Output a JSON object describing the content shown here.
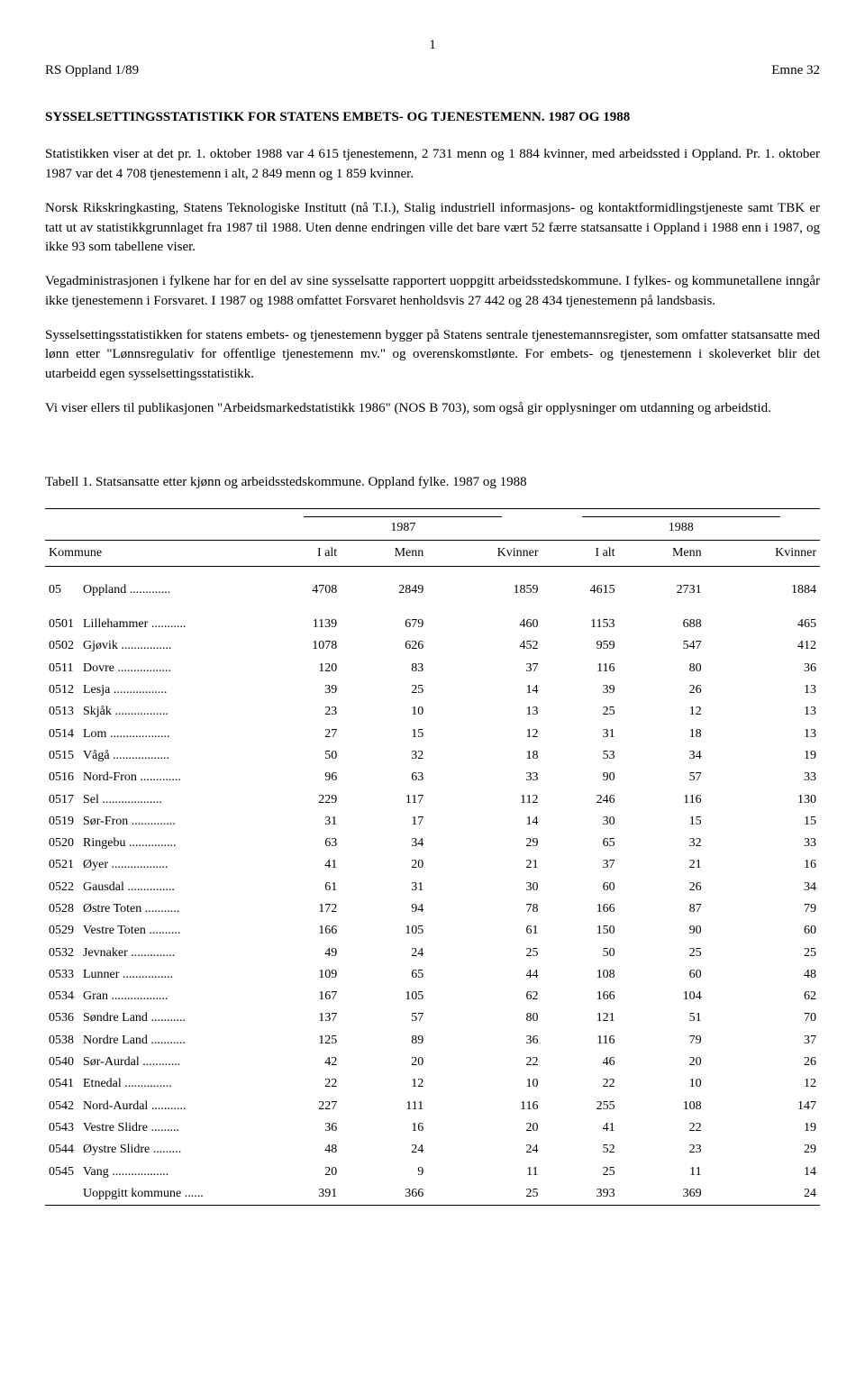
{
  "header": {
    "doc_ref": "RS Oppland 1/89",
    "page_number": "1",
    "topic": "Emne 32"
  },
  "title": "SYSSELSETTINGSSTATISTIKK FOR STATENS EMBETS- OG TJENESTEMENN. 1987 OG 1988",
  "paragraphs": [
    "Statistikken viser at det pr. 1. oktober 1988 var 4 615 tjenestemenn, 2 731 menn og 1 884 kvinner, med arbeidssted i Oppland. Pr. 1. oktober 1987 var det 4 708 tjenestemenn i alt, 2 849 menn og 1 859 kvinner.",
    "Norsk Rikskringkasting, Statens Teknologiske Institutt (nå T.I.), Stalig industriell informasjons- og kontaktformidlingstjeneste samt TBK er tatt ut av statistikkgrunnlaget fra 1987 til 1988. Uten denne endringen ville det bare vært 52 færre statsansatte i Oppland i 1988 enn i 1987, og ikke 93 som tabellene viser.",
    "Vegadministrasjonen i fylkene har for en del av sine sysselsatte rapportert uoppgitt arbeidsstedskommune. I fylkes- og kommunetallene inngår ikke tjenestemenn i Forsvaret. I 1987 og 1988 omfattet Forsvaret henholdsvis 27 442 og 28 434 tjenestemenn på landsbasis.",
    "Sysselsettingsstatistikken for statens embets- og tjenestemenn bygger på Statens sentrale tjenestemannsregister, som omfatter statsansatte med lønn etter \"Lønnsregulativ for offentlige tjenestemenn mv.\" og overenskomstlønte. For embets- og tjenestemenn i skoleverket blir det utarbeidd egen sysselsettingsstatistikk.",
    "Vi viser ellers til publikasjonen \"Arbeidsmarkedstatistikk 1986\" (NOS B 703), som også gir opplysninger om utdanning og arbeidstid."
  ],
  "table": {
    "caption": "Tabell 1. Statsansatte etter kjønn og arbeidsstedskommune. Oppland fylke. 1987 og 1988",
    "year_a": "1987",
    "year_b": "1988",
    "columns": {
      "kommune": "Kommune",
      "ialt": "I alt",
      "menn": "Menn",
      "kvinner": "Kvinner"
    },
    "total_row": {
      "code": "05",
      "name": "Oppland",
      "a_total": "4708",
      "a_menn": "2849",
      "a_kvinner": "1859",
      "b_total": "4615",
      "b_menn": "2731",
      "b_kvinner": "1884"
    },
    "rows": [
      {
        "code": "0501",
        "name": "Lillehammer",
        "a_total": "1139",
        "a_menn": "679",
        "a_kvinner": "460",
        "b_total": "1153",
        "b_menn": "688",
        "b_kvinner": "465"
      },
      {
        "code": "0502",
        "name": "Gjøvik",
        "a_total": "1078",
        "a_menn": "626",
        "a_kvinner": "452",
        "b_total": "959",
        "b_menn": "547",
        "b_kvinner": "412"
      },
      {
        "code": "0511",
        "name": "Dovre",
        "a_total": "120",
        "a_menn": "83",
        "a_kvinner": "37",
        "b_total": "116",
        "b_menn": "80",
        "b_kvinner": "36"
      },
      {
        "code": "0512",
        "name": "Lesja",
        "a_total": "39",
        "a_menn": "25",
        "a_kvinner": "14",
        "b_total": "39",
        "b_menn": "26",
        "b_kvinner": "13"
      },
      {
        "code": "0513",
        "name": "Skjåk",
        "a_total": "23",
        "a_menn": "10",
        "a_kvinner": "13",
        "b_total": "25",
        "b_menn": "12",
        "b_kvinner": "13"
      },
      {
        "code": "0514",
        "name": "Lom",
        "a_total": "27",
        "a_menn": "15",
        "a_kvinner": "12",
        "b_total": "31",
        "b_menn": "18",
        "b_kvinner": "13"
      },
      {
        "code": "0515",
        "name": "Vågå",
        "a_total": "50",
        "a_menn": "32",
        "a_kvinner": "18",
        "b_total": "53",
        "b_menn": "34",
        "b_kvinner": "19"
      },
      {
        "code": "0516",
        "name": "Nord-Fron",
        "a_total": "96",
        "a_menn": "63",
        "a_kvinner": "33",
        "b_total": "90",
        "b_menn": "57",
        "b_kvinner": "33"
      },
      {
        "code": "0517",
        "name": "Sel",
        "a_total": "229",
        "a_menn": "117",
        "a_kvinner": "112",
        "b_total": "246",
        "b_menn": "116",
        "b_kvinner": "130"
      },
      {
        "code": "0519",
        "name": "Sør-Fron",
        "a_total": "31",
        "a_menn": "17",
        "a_kvinner": "14",
        "b_total": "30",
        "b_menn": "15",
        "b_kvinner": "15"
      },
      {
        "code": "0520",
        "name": "Ringebu",
        "a_total": "63",
        "a_menn": "34",
        "a_kvinner": "29",
        "b_total": "65",
        "b_menn": "32",
        "b_kvinner": "33"
      },
      {
        "code": "0521",
        "name": "Øyer",
        "a_total": "41",
        "a_menn": "20",
        "a_kvinner": "21",
        "b_total": "37",
        "b_menn": "21",
        "b_kvinner": "16"
      },
      {
        "code": "0522",
        "name": "Gausdal",
        "a_total": "61",
        "a_menn": "31",
        "a_kvinner": "30",
        "b_total": "60",
        "b_menn": "26",
        "b_kvinner": "34"
      },
      {
        "code": "0528",
        "name": "Østre Toten",
        "a_total": "172",
        "a_menn": "94",
        "a_kvinner": "78",
        "b_total": "166",
        "b_menn": "87",
        "b_kvinner": "79"
      },
      {
        "code": "0529",
        "name": "Vestre Toten",
        "a_total": "166",
        "a_menn": "105",
        "a_kvinner": "61",
        "b_total": "150",
        "b_menn": "90",
        "b_kvinner": "60"
      },
      {
        "code": "0532",
        "name": "Jevnaker",
        "a_total": "49",
        "a_menn": "24",
        "a_kvinner": "25",
        "b_total": "50",
        "b_menn": "25",
        "b_kvinner": "25"
      },
      {
        "code": "0533",
        "name": "Lunner",
        "a_total": "109",
        "a_menn": "65",
        "a_kvinner": "44",
        "b_total": "108",
        "b_menn": "60",
        "b_kvinner": "48"
      },
      {
        "code": "0534",
        "name": "Gran",
        "a_total": "167",
        "a_menn": "105",
        "a_kvinner": "62",
        "b_total": "166",
        "b_menn": "104",
        "b_kvinner": "62"
      },
      {
        "code": "0536",
        "name": "Søndre Land",
        "a_total": "137",
        "a_menn": "57",
        "a_kvinner": "80",
        "b_total": "121",
        "b_menn": "51",
        "b_kvinner": "70"
      },
      {
        "code": "0538",
        "name": "Nordre Land",
        "a_total": "125",
        "a_menn": "89",
        "a_kvinner": "36",
        "b_total": "116",
        "b_menn": "79",
        "b_kvinner": "37"
      },
      {
        "code": "0540",
        "name": "Sør-Aurdal",
        "a_total": "42",
        "a_menn": "20",
        "a_kvinner": "22",
        "b_total": "46",
        "b_menn": "20",
        "b_kvinner": "26"
      },
      {
        "code": "0541",
        "name": "Etnedal",
        "a_total": "22",
        "a_menn": "12",
        "a_kvinner": "10",
        "b_total": "22",
        "b_menn": "10",
        "b_kvinner": "12"
      },
      {
        "code": "0542",
        "name": "Nord-Aurdal",
        "a_total": "227",
        "a_menn": "111",
        "a_kvinner": "116",
        "b_total": "255",
        "b_menn": "108",
        "b_kvinner": "147"
      },
      {
        "code": "0543",
        "name": "Vestre Slidre",
        "a_total": "36",
        "a_menn": "16",
        "a_kvinner": "20",
        "b_total": "41",
        "b_menn": "22",
        "b_kvinner": "19"
      },
      {
        "code": "0544",
        "name": "Øystre Slidre",
        "a_total": "48",
        "a_menn": "24",
        "a_kvinner": "24",
        "b_total": "52",
        "b_menn": "23",
        "b_kvinner": "29"
      },
      {
        "code": "0545",
        "name": "Vang",
        "a_total": "20",
        "a_menn": "9",
        "a_kvinner": "11",
        "b_total": "25",
        "b_menn": "11",
        "b_kvinner": "14"
      },
      {
        "code": "",
        "name": "Uoppgitt kommune",
        "a_total": "391",
        "a_menn": "366",
        "a_kvinner": "25",
        "b_total": "393",
        "b_menn": "369",
        "b_kvinner": "24"
      }
    ]
  }
}
